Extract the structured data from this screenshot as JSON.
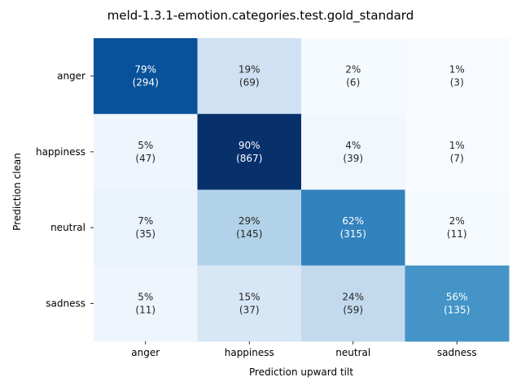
{
  "chart_data": {
    "type": "heatmap",
    "title": "meld-1.3.1-emotion.categories.test.gold_standard",
    "xlabel": "Prediction upward tilt",
    "ylabel": "Prediction clean",
    "x_categories": [
      "anger",
      "happiness",
      "neutral",
      "sadness"
    ],
    "y_categories": [
      "anger",
      "happiness",
      "neutral",
      "sadness"
    ],
    "colormap": "Blues",
    "colorbar": false,
    "grid": false,
    "cells": [
      [
        {
          "percent": "79%",
          "count": "(294)",
          "value": 0.79
        },
        {
          "percent": "19%",
          "count": "(69)",
          "value": 0.19
        },
        {
          "percent": "2%",
          "count": "(6)",
          "value": 0.02
        },
        {
          "percent": "1%",
          "count": "(3)",
          "value": 0.01
        }
      ],
      [
        {
          "percent": "5%",
          "count": "(47)",
          "value": 0.05
        },
        {
          "percent": "90%",
          "count": "(867)",
          "value": 0.9
        },
        {
          "percent": "4%",
          "count": "(39)",
          "value": 0.04
        },
        {
          "percent": "1%",
          "count": "(7)",
          "value": 0.01
        }
      ],
      [
        {
          "percent": "7%",
          "count": "(35)",
          "value": 0.07
        },
        {
          "percent": "29%",
          "count": "(145)",
          "value": 0.29
        },
        {
          "percent": "62%",
          "count": "(315)",
          "value": 0.62
        },
        {
          "percent": "2%",
          "count": "(11)",
          "value": 0.02
        }
      ],
      [
        {
          "percent": "5%",
          "count": "(11)",
          "value": 0.05
        },
        {
          "percent": "15%",
          "count": "(37)",
          "value": 0.15
        },
        {
          "percent": "24%",
          "count": "(59)",
          "value": 0.24
        },
        {
          "percent": "56%",
          "count": "(135)",
          "value": 0.56
        }
      ]
    ]
  }
}
